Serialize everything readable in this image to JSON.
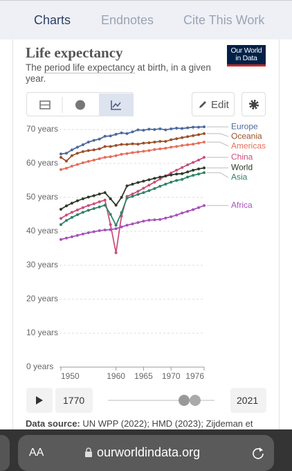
{
  "tabs": [
    "Charts",
    "Endnotes",
    "Cite This Work"
  ],
  "logo": [
    "Our World",
    "in Data"
  ],
  "subtitle_parts": [
    "The ",
    "period life expectancy",
    " at birth, in a given year."
  ],
  "edit_button": "Edit",
  "timeline": {
    "start": "1770",
    "end": "2021"
  },
  "source": {
    "label": "Data source:",
    "text": "UN WPP (2022); HMD (2023); Zijdeman et"
  },
  "browser": {
    "text_size": "AA",
    "url": "ourworldindata.org"
  },
  "chart_data": {
    "type": "line",
    "title": "Life expectancy",
    "x": [
      1950,
      1951,
      1952,
      1953,
      1954,
      1955,
      1956,
      1957,
      1958,
      1959,
      1960,
      1961,
      1962,
      1963,
      1964,
      1965,
      1966,
      1967,
      1968,
      1969,
      1970,
      1971,
      1972,
      1973,
      1974,
      1975,
      1976
    ],
    "xlim": [
      1950,
      1976
    ],
    "xticks": [
      1950,
      1960,
      1965,
      1970,
      1976
    ],
    "ylim": [
      0,
      71
    ],
    "yticks": [
      {
        "value": 0,
        "label": "0 years"
      },
      {
        "value": 10,
        "label": "10 years"
      },
      {
        "value": 20,
        "label": "20 years"
      },
      {
        "value": 30,
        "label": "30 years"
      },
      {
        "value": 40,
        "label": "40 years"
      },
      {
        "value": 50,
        "label": "50 years"
      },
      {
        "value": 60,
        "label": "60 years"
      },
      {
        "value": 70,
        "label": "70 years"
      }
    ],
    "grid": true,
    "series": [
      {
        "name": "Europe",
        "color": "#4c6a9c",
        "values": [
          62.8,
          63.0,
          64.0,
          64.8,
          65.5,
          66.3,
          66.8,
          67.2,
          68.0,
          68.1,
          68.6,
          69.0,
          68.8,
          69.3,
          69.9,
          69.8,
          70.1,
          70.0,
          70.2,
          69.9,
          70.2,
          70.4,
          70.3,
          70.5,
          70.7,
          70.7,
          70.8
        ]
      },
      {
        "name": "Oceania",
        "color": "#9a5129",
        "values": [
          61.8,
          60.7,
          62.3,
          63.0,
          63.5,
          63.8,
          64.0,
          64.3,
          65.0,
          65.0,
          65.3,
          65.6,
          65.6,
          65.8,
          65.7,
          66.0,
          66.1,
          66.3,
          66.5,
          66.5,
          67.0,
          67.3,
          67.6,
          67.9,
          68.2,
          68.5,
          68.8
        ]
      },
      {
        "name": "Americas",
        "color": "#e56e5a",
        "values": [
          58.2,
          58.6,
          59.2,
          59.7,
          60.2,
          60.6,
          61.0,
          61.4,
          61.8,
          62.0,
          62.3,
          62.7,
          62.9,
          63.2,
          63.4,
          63.6,
          63.8,
          64.1,
          64.3,
          64.5,
          64.8,
          65.0,
          65.3,
          65.5,
          65.7,
          66.0,
          66.3
        ]
      },
      {
        "name": "China",
        "color": "#c94f7c",
        "values": [
          43.8,
          44.8,
          45.6,
          46.3,
          47.0,
          47.6,
          48.1,
          48.7,
          49.2,
          42.0,
          33.7,
          44.5,
          50.3,
          51.0,
          51.8,
          52.7,
          53.6,
          54.5,
          55.4,
          56.3,
          57.2,
          58.0,
          58.8,
          59.6,
          60.3,
          61.0,
          61.8
        ]
      },
      {
        "name": "World",
        "color": "#2c3b28",
        "values": [
          46.5,
          47.5,
          48.3,
          49.0,
          49.6,
          50.1,
          50.5,
          51.0,
          51.4,
          49.6,
          47.7,
          50.0,
          53.4,
          53.9,
          54.4,
          54.8,
          55.2,
          55.6,
          56.0,
          56.3,
          56.6,
          56.9,
          57.0,
          57.5,
          58.0,
          58.4,
          58.7
        ]
      },
      {
        "name": "Asia",
        "color": "#2c8465",
        "values": [
          42.0,
          43.2,
          44.1,
          44.9,
          45.6,
          46.2,
          46.7,
          47.2,
          47.7,
          45.0,
          41.8,
          45.5,
          49.8,
          50.3,
          50.9,
          51.4,
          52.0,
          52.6,
          53.3,
          53.9,
          54.5,
          55.0,
          55.3,
          56.0,
          56.5,
          56.9,
          57.3
        ]
      },
      {
        "name": "Africa",
        "color": "#a652ba",
        "values": [
          37.6,
          38.0,
          38.4,
          38.8,
          39.2,
          39.6,
          39.9,
          40.2,
          40.4,
          40.5,
          40.8,
          41.3,
          41.8,
          42.2,
          42.6,
          43.0,
          43.3,
          43.4,
          43.5,
          43.9,
          44.3,
          44.8,
          45.4,
          45.9,
          46.4,
          47.0,
          47.6
        ]
      }
    ]
  }
}
